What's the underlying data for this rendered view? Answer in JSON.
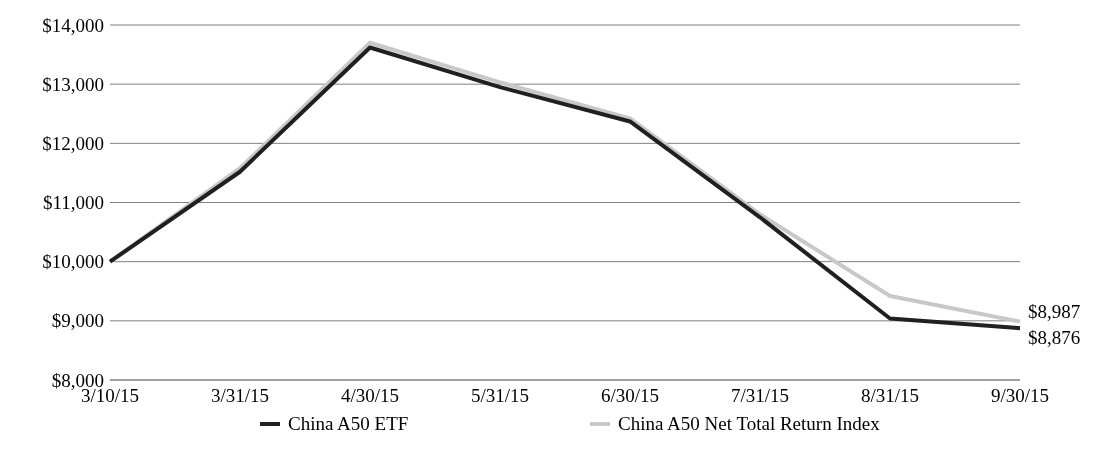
{
  "chart_data": {
    "type": "line",
    "categories": [
      "3/10/15",
      "3/31/15",
      "4/30/15",
      "5/31/15",
      "6/30/15",
      "7/31/15",
      "8/31/15",
      "9/30/15"
    ],
    "series": [
      {
        "name": "China A50 Net Total Return Index",
        "color": "#c8c8c8",
        "values": [
          10000,
          11580,
          13700,
          13030,
          12420,
          10800,
          9420,
          8987
        ],
        "value_labels": [
          null,
          null,
          null,
          null,
          null,
          null,
          null,
          "$8,987"
        ]
      },
      {
        "name": "China A50 ETF",
        "color": "#231f20",
        "values": [
          10000,
          11520,
          13620,
          12950,
          12370,
          10750,
          9040,
          8876
        ],
        "value_labels": [
          null,
          null,
          null,
          null,
          null,
          null,
          null,
          "$8,876"
        ]
      }
    ],
    "ylim": [
      8000,
      14000
    ],
    "yticks": [
      {
        "value": 8000,
        "label": "$8,000"
      },
      {
        "value": 9000,
        "label": "$9,000"
      },
      {
        "value": 10000,
        "label": "$10,000"
      },
      {
        "value": 11000,
        "label": "$11,000"
      },
      {
        "value": 12000,
        "label": "$12,000"
      },
      {
        "value": 13000,
        "label": "$13,000"
      },
      {
        "value": 14000,
        "label": "$14,000"
      }
    ],
    "grid": "y",
    "legend": "bottom",
    "marker": "none",
    "line_style": "solid"
  }
}
